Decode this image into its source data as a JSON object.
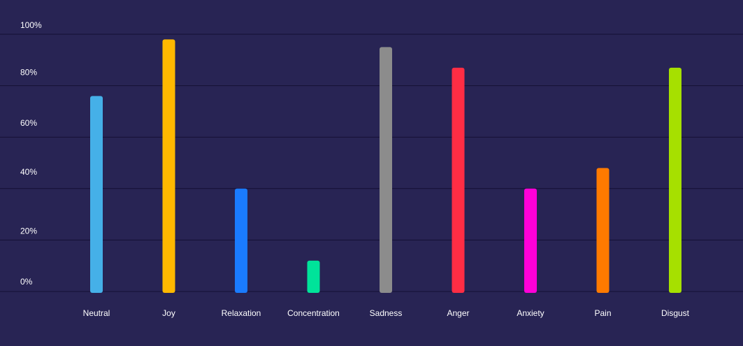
{
  "chart_data": {
    "type": "bar",
    "title": "",
    "xlabel": "",
    "ylabel": "",
    "ylim": [
      0,
      100
    ],
    "grid": true,
    "yticks": [
      {
        "value": 100,
        "label": "100%"
      },
      {
        "value": 80,
        "label": "80%"
      },
      {
        "value": 60,
        "label": "60%"
      },
      {
        "value": 40,
        "label": "40%"
      },
      {
        "value": 20,
        "label": "20%"
      },
      {
        "value": 0,
        "label": "0%"
      }
    ],
    "categories": [
      "Neutral",
      "Joy",
      "Relaxation",
      "Concentration",
      "Sadness",
      "Anger",
      "Anxiety",
      "Pain",
      "Disgust"
    ],
    "values": [
      76,
      98,
      40,
      12,
      95,
      87,
      40,
      48,
      87
    ],
    "colors": [
      "#45b0e8",
      "#ffb800",
      "#1a7bff",
      "#00e39a",
      "#8c8c8c",
      "#ff2d44",
      "#ff00d8",
      "#ff7a00",
      "#a6e000"
    ]
  }
}
